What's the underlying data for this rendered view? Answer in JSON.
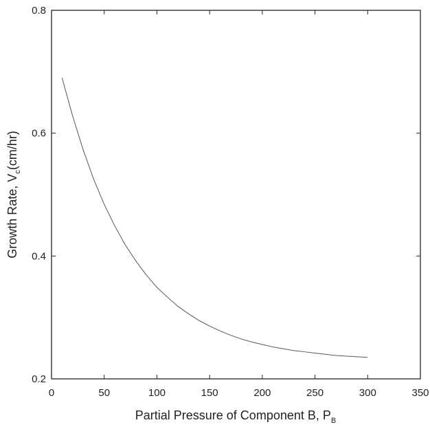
{
  "chart_data": {
    "type": "line",
    "title": "",
    "xlabel": "Partial Pressure of Component B, P",
    "xlabel_subscript": "B",
    "ylabel_prefix": "Growth Rate, V",
    "ylabel_subscript": "c",
    "ylabel_suffix": "(cm/hr)",
    "xlim": [
      0,
      350
    ],
    "ylim": [
      0.2,
      0.8
    ],
    "xticks": [
      "0",
      "50",
      "100",
      "150",
      "200",
      "250",
      "300",
      "350"
    ],
    "yticks": [
      "0.2",
      "0.4",
      "0.6",
      "0.8"
    ],
    "grid": false,
    "series": [
      {
        "x": [
          10,
          20,
          30,
          40,
          50,
          60,
          70,
          80,
          90,
          100,
          110,
          120,
          130,
          140,
          150,
          160,
          170,
          180,
          190,
          200,
          210,
          220,
          230,
          240,
          250,
          260,
          270,
          280,
          290,
          300
        ],
        "y": [
          0.69,
          0.628,
          0.573,
          0.525,
          0.484,
          0.449,
          0.418,
          0.392,
          0.369,
          0.349,
          0.333,
          0.318,
          0.306,
          0.295,
          0.286,
          0.278,
          0.271,
          0.265,
          0.26,
          0.256,
          0.252,
          0.249,
          0.246,
          0.244,
          0.242,
          0.24,
          0.238,
          0.237,
          0.236,
          0.235
        ],
        "color": "#555555"
      }
    ]
  }
}
